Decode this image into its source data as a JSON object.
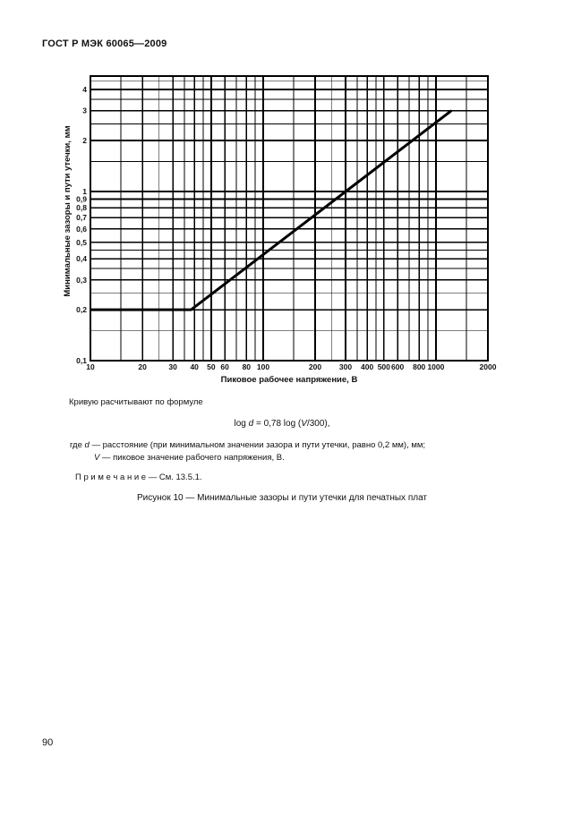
{
  "header": {
    "title": "ГОСТ Р МЭК 60065—2009"
  },
  "chart_data": {
    "type": "line",
    "title": "Рисунок 10",
    "x_scale": "log",
    "y_scale": "log",
    "x_range": [
      10,
      2000
    ],
    "y_range": [
      0.1,
      4.8
    ],
    "grid": "on",
    "xlabel": "Пиковое рабочее напряжение, В",
    "ylabel": "Минимальные зазоры и пути утечки, мм",
    "x_ticks": {
      "values": [
        10,
        20,
        30,
        40,
        50,
        60,
        80,
        100,
        200,
        300,
        400,
        500,
        600,
        800,
        1000,
        2000
      ],
      "labels": [
        "10",
        "20",
        "30",
        "40",
        "50",
        "60",
        "80",
        "100",
        "200",
        "300",
        "400",
        "500",
        "600",
        "800",
        "1000",
        "2000"
      ]
    },
    "x_minor": [
      15,
      25,
      35,
      45,
      70,
      90,
      150,
      250,
      350,
      450,
      700,
      900,
      1500
    ],
    "y_ticks": {
      "values": [
        0.1,
        0.2,
        0.3,
        0.4,
        0.5,
        0.6,
        0.7,
        0.8,
        0.9,
        1,
        2,
        3,
        4
      ],
      "labels": [
        "0,1",
        "0,2",
        "0,3",
        "0,4",
        "0,5",
        "0,6",
        "0,7",
        "0,8",
        "0,9",
        "1",
        "2",
        "3",
        "4"
      ]
    },
    "y_minor": [
      0.15,
      0.25,
      0.35,
      0.45,
      1.5,
      2.5,
      3.5,
      4.5
    ],
    "series": [
      {
        "name": "минимальные зазоры и пути утечки",
        "points": [
          [
            10,
            0.2
          ],
          [
            38.3,
            0.2
          ],
          [
            1230,
            3.0
          ]
        ]
      }
    ],
    "formula": "log d = 0,78 log (V/300)"
  },
  "body": {
    "intro": "Кривую расчитывают по формуле",
    "formula": {
      "pre": "log ",
      "d": "d",
      "mid": " = 0,78 log (",
      "v": "V",
      "post": "/300),"
    },
    "where": {
      "lead": "где ",
      "d": "d",
      "d_text": " — расстояние (при минимальном значении зазора и пути утечки, равно 0,2 мм), мм;",
      "v": "V",
      "v_text": " — пиковое значение рабочего напряжения, В."
    },
    "note": "П р и м е ч а н и е — См. 13.5.1.",
    "caption": "Рисунок 10 — Минимальные зазоры и пути утечки для печатных плат"
  },
  "footer": {
    "page_number": "90"
  }
}
